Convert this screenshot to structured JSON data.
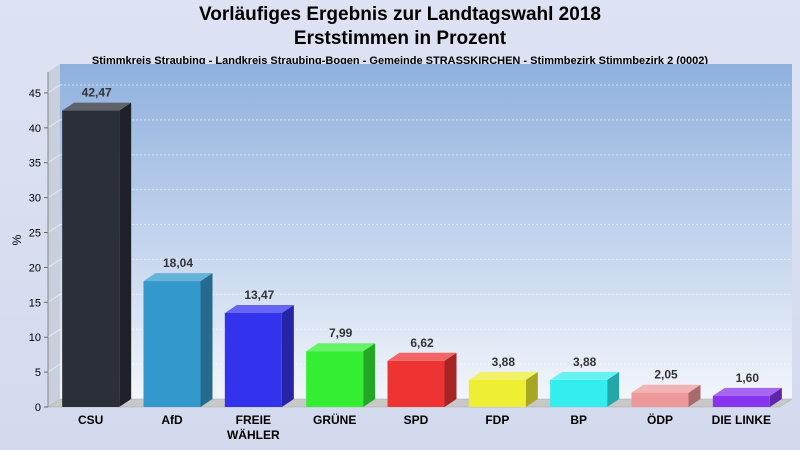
{
  "chart_data": {
    "type": "bar",
    "title": "Vorläufiges Ergebnis zur Landtagswahl 2018",
    "subtitle": "Erststimmen in Prozent",
    "subtitle2": "Stimmkreis Straubing - Landkreis Straubing-Bogen - Gemeinde STRASSKIRCHEN - Stimmbezirk Stimmbezirk 2 (0002)",
    "ylabel": "%",
    "ylim": [
      0,
      48
    ],
    "yticks": [
      0,
      5,
      10,
      15,
      20,
      25,
      30,
      35,
      40,
      45
    ],
    "grid": true,
    "categories": [
      "CSU",
      "AfD",
      "FREIE WÄHLER",
      "GRÜNE",
      "SPD",
      "FDP",
      "BP",
      "ÖDP",
      "DIE LINKE"
    ],
    "category_lines": [
      [
        "CSU"
      ],
      [
        "AfD"
      ],
      [
        "FREIE",
        "WÄHLER"
      ],
      [
        "GRÜNE"
      ],
      [
        "SPD"
      ],
      [
        "FDP"
      ],
      [
        "BP"
      ],
      [
        "ÖDP"
      ],
      [
        "DIE LINKE"
      ]
    ],
    "values": [
      42.47,
      18.04,
      13.47,
      7.99,
      6.62,
      3.88,
      3.88,
      2.05,
      1.6
    ],
    "value_labels": [
      "42,47",
      "18,04",
      "13,47",
      "7,99",
      "6,62",
      "3,88",
      "3,88",
      "2,05",
      "1,60"
    ],
    "colors": [
      "#2b2f38",
      "#3399cc",
      "#3333ee",
      "#33ee33",
      "#ee3333",
      "#eeee33",
      "#33eeee",
      "#ee9999",
      "#8833ee"
    ]
  }
}
